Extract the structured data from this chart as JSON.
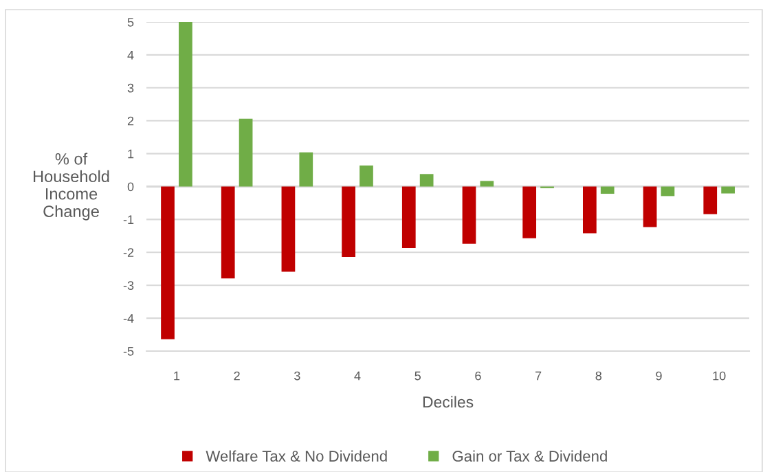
{
  "chart_data": {
    "type": "bar",
    "xlabel": "Deciles",
    "ylabel": "% of\nHousehold\nIncome\nChange",
    "categories": [
      "1",
      "2",
      "3",
      "4",
      "5",
      "6",
      "7",
      "8",
      "9",
      "10"
    ],
    "series": [
      {
        "name": "Welfare Tax & No Dividend",
        "color": "#c00000",
        "values": [
          -4.64,
          -2.79,
          -2.59,
          -2.14,
          -1.87,
          -1.74,
          -1.57,
          -1.42,
          -1.23,
          -0.84
        ]
      },
      {
        "name": "Gain or Tax & Dividend",
        "color": "#70ad47",
        "values": [
          5.0,
          2.06,
          1.04,
          0.64,
          0.38,
          0.17,
          -0.05,
          -0.22,
          -0.29,
          -0.21
        ]
      }
    ],
    "ylim": [
      -5,
      5
    ],
    "yticks": [
      -5,
      -4,
      -3,
      -2,
      -1,
      0,
      1,
      2,
      3,
      4,
      5
    ],
    "grid": "y",
    "legend": "bottom"
  }
}
